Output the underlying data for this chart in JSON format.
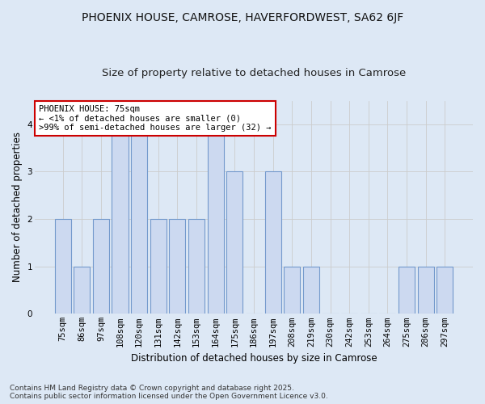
{
  "title1": "PHOENIX HOUSE, CAMROSE, HAVERFORDWEST, SA62 6JF",
  "title2": "Size of property relative to detached houses in Camrose",
  "xlabel": "Distribution of detached houses by size in Camrose",
  "ylabel": "Number of detached properties",
  "categories": [
    "75sqm",
    "86sqm",
    "97sqm",
    "108sqm",
    "120sqm",
    "131sqm",
    "142sqm",
    "153sqm",
    "164sqm",
    "175sqm",
    "186sqm",
    "197sqm",
    "208sqm",
    "219sqm",
    "230sqm",
    "242sqm",
    "253sqm",
    "264sqm",
    "275sqm",
    "286sqm",
    "297sqm"
  ],
  "values": [
    2,
    1,
    2,
    4,
    4,
    2,
    2,
    2,
    4,
    3,
    0,
    3,
    1,
    1,
    0,
    0,
    0,
    0,
    1,
    1,
    1
  ],
  "bar_color": "#ccd9f0",
  "bar_edge_color": "#7399cc",
  "annotation_text": "PHOENIX HOUSE: 75sqm\n← <1% of detached houses are smaller (0)\n>99% of semi-detached houses are larger (32) →",
  "annotation_box_color": "#ffffff",
  "annotation_box_edge": "#cc0000",
  "ylim": [
    0,
    4.5
  ],
  "yticks": [
    0,
    1,
    2,
    3,
    4
  ],
  "grid_color": "#cccccc",
  "bg_color": "#dde8f5",
  "footer": "Contains HM Land Registry data © Crown copyright and database right 2025.\nContains public sector information licensed under the Open Government Licence v3.0.",
  "title1_fontsize": 10,
  "title2_fontsize": 9.5,
  "xlabel_fontsize": 8.5,
  "ylabel_fontsize": 8.5,
  "tick_fontsize": 7.5,
  "annot_fontsize": 7.5,
  "footer_fontsize": 6.5
}
